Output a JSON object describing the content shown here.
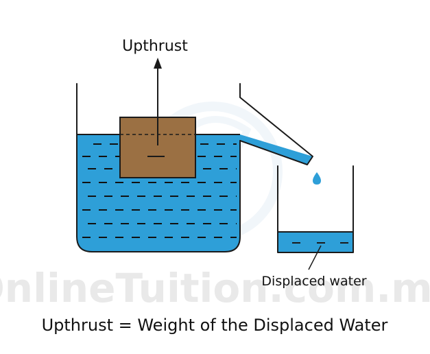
{
  "labels": {
    "upthrust": "Upthrust",
    "displaced_water": "Displaced water",
    "equation": "Upthrust = Weight of the Displaced Water",
    "watermark": "OnlineTuition.com.my"
  },
  "colors": {
    "water": "#2e9fd8",
    "block": "#9b7043",
    "outline": "#1a1a1a",
    "watermark": "#e9e9e9"
  }
}
